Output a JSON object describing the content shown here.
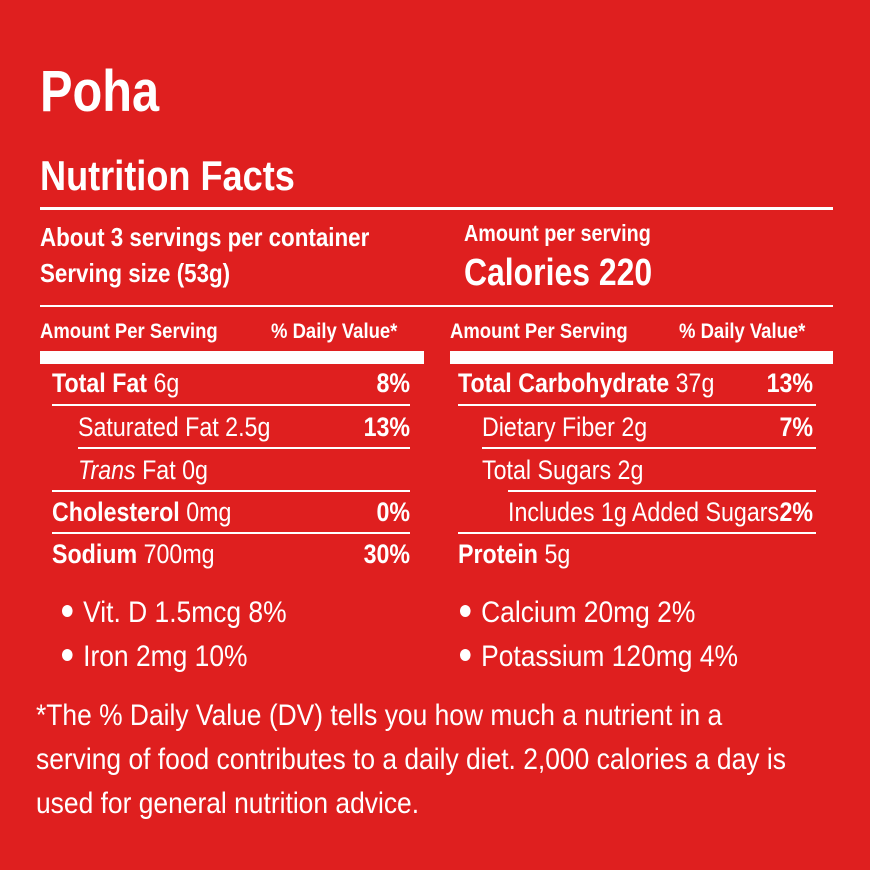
{
  "product_name": "Poha",
  "heading": "Nutrition Facts",
  "servings_per_container": "About 3 servings per container",
  "serving_size": "Serving size (53g)",
  "amount_per_serving": "Amount per serving",
  "calories_label": "Calories 220",
  "column_headers": {
    "amount": "Amount Per Serving",
    "daily_value": "% Daily Value*"
  },
  "left_rows": [
    {
      "name": "Total Fat",
      "amount": "6g",
      "dv": "8%"
    },
    {
      "name": "Saturated Fat",
      "amount": "2.5g",
      "dv": "13%"
    },
    {
      "name": "Trans",
      "amount": "Fat 0g",
      "dv": ""
    },
    {
      "name": "Cholesterol",
      "amount": "0mg",
      "dv": "0%"
    },
    {
      "name": "Sodium",
      "amount": "700mg",
      "dv": "30%"
    }
  ],
  "right_rows": [
    {
      "name": "Total Carbohydrate",
      "amount": "37g",
      "dv": "13%"
    },
    {
      "name": "Dietary Fiber",
      "amount": "2g",
      "dv": "7%"
    },
    {
      "name": "Total Sugars",
      "amount": "2g",
      "dv": ""
    },
    {
      "name": "Includes 1g Added Sugars",
      "amount": "",
      "dv": "2%"
    },
    {
      "name": "Protein",
      "amount": "5g",
      "dv": ""
    }
  ],
  "vitamins_left": [
    "Vit. D 1.5mcg 8%",
    "Iron 2mg 10%"
  ],
  "vitamins_right": [
    "Calcium 20mg 2%",
    "Potassium 120mg 4%"
  ],
  "footnote": [
    "*The % Daily Value (DV) tells you how much a nutrient in a",
    "serving of food contributes to a daily diet. 2,000 calories a day is",
    "used for general nutrition advice."
  ]
}
